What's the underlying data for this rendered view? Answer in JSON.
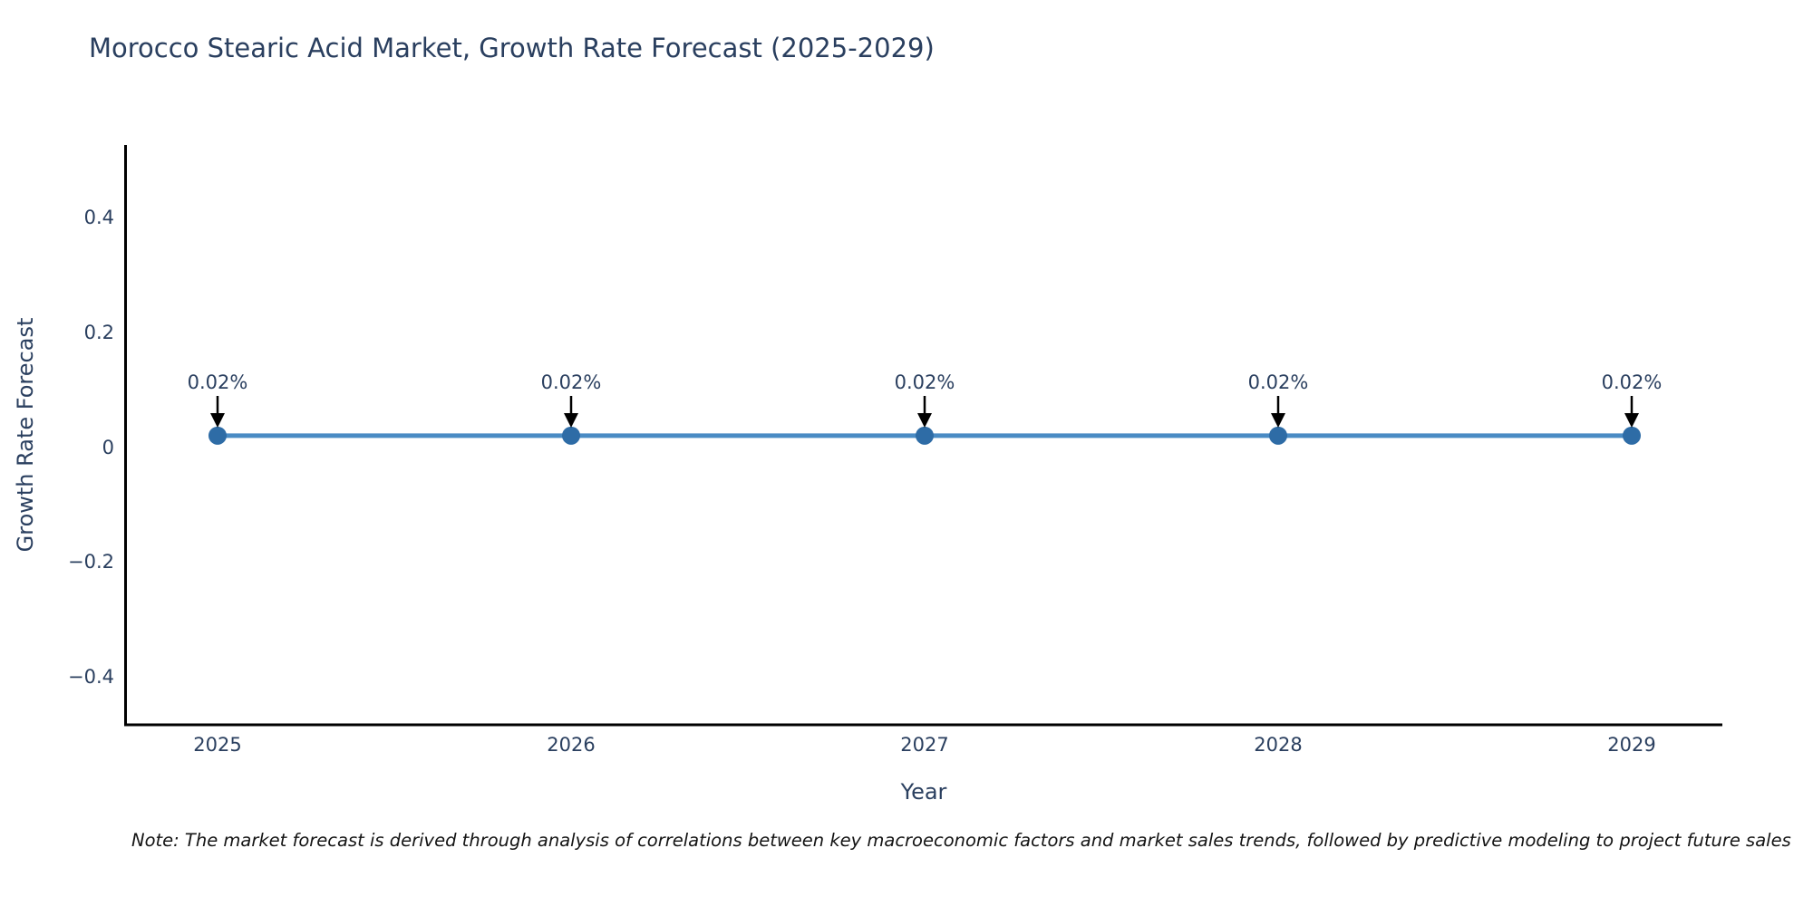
{
  "title": "Morocco Stearic Acid Market, Growth Rate Forecast (2025-2029)",
  "note": "Note: The market forecast is derived through analysis of correlations between key macroeconomic factors and market sales trends, followed by predictive modeling to project future sales",
  "chart_data": {
    "type": "line",
    "title": "Morocco Stearic Acid Market, Growth Rate Forecast (2025-2029)",
    "xlabel": "Year",
    "ylabel": "Growth Rate Forecast",
    "categories": [
      2025,
      2026,
      2027,
      2028,
      2029
    ],
    "series": [
      {
        "name": "Growth Rate Forecast",
        "values": [
          0.02,
          0.02,
          0.02,
          0.02,
          0.02
        ]
      }
    ],
    "point_labels": [
      "0.02%",
      "0.02%",
      "0.02%",
      "0.02%",
      "0.02%"
    ],
    "yticks": [
      0.4,
      0.2,
      0,
      -0.2,
      -0.4
    ],
    "ylim": [
      -0.48,
      0.53
    ],
    "grid": false,
    "legend": "none",
    "annotation_style": "down-arrow",
    "colors": {
      "line": "#4a8bc4",
      "marker": "#2e6ca6",
      "axis": "#000000",
      "text": "#2a3f5f",
      "arrow": "#000000",
      "background": "#ffffff"
    }
  }
}
